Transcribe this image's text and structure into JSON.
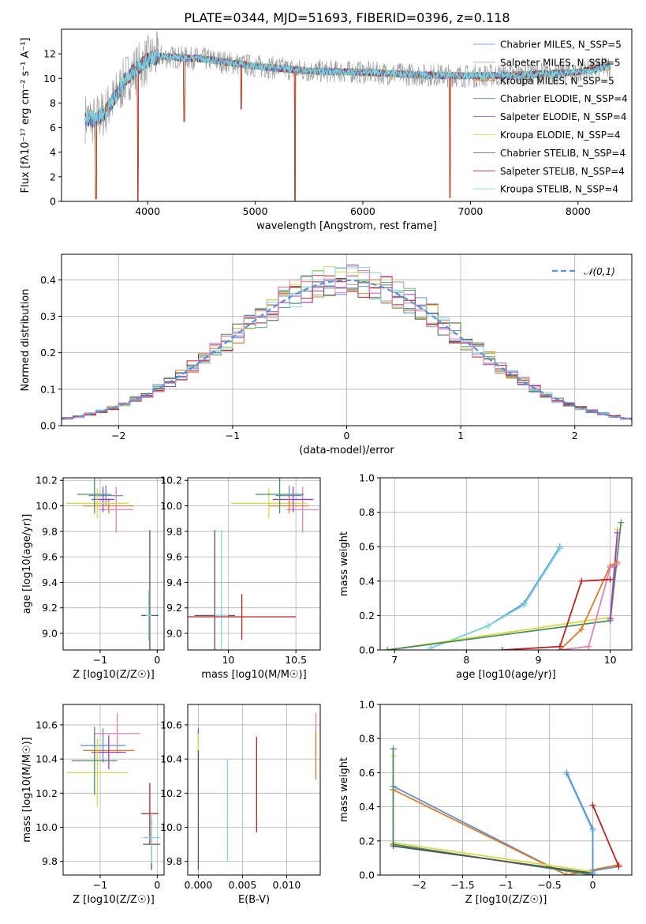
{
  "figure": {
    "title": "PLATE=0344, MJD=51693, FIBERID=0396, z=0.118"
  },
  "colors": {
    "chabrier_miles": "#5b8fd6",
    "salpeter_miles": "#9e9e9e",
    "kroupa_miles": "#e07b25",
    "chabrier_elodie": "#4e8c62",
    "salpeter_elodie": "#a13cc8",
    "kroupa_elodie": "#d5dc4a",
    "chabrier_stelib": "#555555",
    "salpeter_stelib": "#c02020",
    "kroupa_stelib": "#7fd6e0",
    "normal": "#5b8fd6",
    "pink": "#e57fb8",
    "grey_spec": "#7f7f7f"
  },
  "chart_data": [
    {
      "id": "spectrum",
      "type": "line",
      "xlabel": "wavelength [Angstrom, rest frame]",
      "ylabel": "Flux [fλ10⁻¹⁷ erg cm⁻² s⁻¹ A⁻¹]",
      "xlim": [
        3200,
        8500
      ],
      "ylim": [
        0,
        14
      ],
      "xticks": [
        4000,
        5000,
        6000,
        7000,
        8000
      ],
      "yticks": [
        0,
        2,
        4,
        6,
        8,
        10,
        12
      ],
      "legend": "right",
      "series": [
        {
          "name": "Chabrier MILES, N_SSP=5",
          "color_key": "chabrier_miles"
        },
        {
          "name": "Salpeter MILES, N_SSP=5",
          "color_key": "salpeter_miles"
        },
        {
          "name": "Kroupa MILES, N_SSP=5",
          "color_key": "kroupa_miles"
        },
        {
          "name": "Chabrier ELODIE, N_SSP=4",
          "color_key": "chabrier_elodie"
        },
        {
          "name": "Salpeter ELODIE, N_SSP=4",
          "color_key": "salpeter_elodie"
        },
        {
          "name": "Kroupa ELODIE, N_SSP=4",
          "color_key": "kroupa_elodie"
        },
        {
          "name": "Chabrier STELIB, N_SSP=4",
          "color_key": "chabrier_stelib"
        },
        {
          "name": "Salpeter STELIB, N_SSP=4",
          "color_key": "salpeter_stelib"
        },
        {
          "name": "Kroupa STELIB, N_SSP=4",
          "color_key": "kroupa_stelib"
        }
      ],
      "continuum": {
        "x": [
          3420,
          3500,
          3600,
          3700,
          3800,
          3900,
          4000,
          4100,
          4300,
          4500,
          5000,
          5500,
          6000,
          6500,
          7000,
          7500,
          8000,
          8300
        ],
        "y": [
          6.8,
          6.6,
          7.2,
          8.5,
          10.0,
          10.8,
          11.5,
          11.8,
          11.7,
          11.6,
          11.0,
          10.6,
          10.5,
          10.3,
          10.2,
          10.3,
          10.5,
          11.0
        ]
      },
      "features": [
        {
          "x": 3520,
          "y": 0.2
        },
        {
          "x": 3910,
          "y": 0.0
        },
        {
          "x": 5370,
          "y": 0.0
        },
        {
          "x": 6810,
          "y": 0.3
        },
        {
          "x": 4340,
          "y": 6.5
        },
        {
          "x": 4870,
          "y": 7.5
        }
      ]
    },
    {
      "id": "residuals",
      "type": "histogram",
      "xlabel": "(data-model)/error",
      "ylabel": "Normed distribution",
      "xlim": [
        -2.5,
        2.5
      ],
      "ylim": [
        0,
        0.47
      ],
      "xticks": [
        -2,
        -1,
        0,
        1,
        2
      ],
      "yticks": [
        0.0,
        0.1,
        0.2,
        0.3,
        0.4
      ],
      "legend": "top-right",
      "gaussian_label": "𝒩(0,1)",
      "bin_width": 0.1
    },
    {
      "id": "age_vs_Z",
      "type": "errorbar",
      "xlabel": "Z [log10(Z/Z☉)]",
      "ylabel": "age  [log10(age/yr)]",
      "xlim": [
        -1.65,
        0.12
      ],
      "ylim": [
        8.87,
        10.22
      ],
      "xticks": [
        -1,
        0
      ],
      "yticks": [
        9.0,
        9.2,
        9.4,
        9.6,
        9.8,
        10.0,
        10.2
      ],
      "points": [
        {
          "c": "chabrier_miles",
          "x": -0.9,
          "xerr": 0.3,
          "y": 10.08,
          "yerr": 0.08
        },
        {
          "c": "kroupa_miles",
          "x": -0.85,
          "xerr": 0.45,
          "y": 10.0,
          "yerr": 0.06
        },
        {
          "c": "pink",
          "x": -0.72,
          "xerr": 0.3,
          "y": 9.97,
          "yerr": 0.18
        },
        {
          "c": "salpeter_elodie",
          "x": -0.95,
          "xerr": 0.2,
          "y": 10.05,
          "yerr": 0.1
        },
        {
          "c": "kroupa_elodie",
          "x": -1.05,
          "xerr": 0.55,
          "y": 10.02,
          "yerr": 0.12
        },
        {
          "c": "chabrier_elodie",
          "x": -1.1,
          "xerr": 0.3,
          "y": 10.09,
          "yerr": 0.15
        },
        {
          "c": "chabrier_stelib",
          "x": -0.13,
          "xerr": 0.15,
          "y": 9.14,
          "yerr": 0.67
        },
        {
          "c": "kroupa_stelib",
          "x": -0.15,
          "xerr": 0.05,
          "y": 9.14,
          "yerr": 0.2
        }
      ]
    },
    {
      "id": "age_vs_mass",
      "type": "errorbar",
      "xlabel": "mass [log10(M/M☉)]",
      "ylabel": "",
      "xlim": [
        9.7,
        10.68
      ],
      "ylim": [
        8.87,
        10.22
      ],
      "xticks": [
        10.0,
        10.5
      ],
      "yticks": [
        9.0,
        9.2,
        9.4,
        9.6,
        9.8,
        10.0,
        10.2
      ],
      "points": [
        {
          "c": "chabrier_miles",
          "x": 10.45,
          "xerr": 0.1,
          "y": 10.08,
          "yerr": 0.08
        },
        {
          "c": "pink",
          "x": 10.55,
          "xerr": 0.12,
          "y": 9.97,
          "yerr": 0.18
        },
        {
          "c": "kroupa_elodie",
          "x": 10.3,
          "xerr": 0.28,
          "y": 10.02,
          "yerr": 0.12
        },
        {
          "c": "salpeter_elodie",
          "x": 10.48,
          "xerr": 0.15,
          "y": 10.05,
          "yerr": 0.1
        },
        {
          "c": "kroupa_miles",
          "x": 10.45,
          "xerr": 0.15,
          "y": 10.0,
          "yerr": 0.06
        },
        {
          "c": "chabrier_elodie",
          "x": 10.38,
          "xerr": 0.18,
          "y": 10.09,
          "yerr": 0.15
        },
        {
          "c": "chabrier_stelib",
          "x": 9.9,
          "xerr": 0.15,
          "y": 9.14,
          "yerr": 0.67
        },
        {
          "c": "kroupa_stelib",
          "x": 9.95,
          "xerr": 0.05,
          "y": 9.14,
          "yerr": 0.67
        },
        {
          "c": "salpeter_stelib",
          "x": 10.1,
          "xerr": 0.4,
          "y": 9.13,
          "yerr": 0.18
        }
      ]
    },
    {
      "id": "weight_vs_age",
      "type": "line",
      "xlabel": "age  [log10(age/yr)]",
      "ylabel": "mass weight",
      "xlim": [
        6.8,
        10.3
      ],
      "ylim": [
        0,
        1
      ],
      "xticks": [
        7,
        8,
        9,
        10
      ],
      "yticks": [
        0.0,
        0.2,
        0.4,
        0.6,
        0.8,
        1.0
      ],
      "series": [
        {
          "c": "chabrier_miles",
          "x": [
            7.5,
            8.3,
            8.8,
            9.3
          ],
          "y": [
            0.01,
            0.14,
            0.27,
            0.6
          ]
        },
        {
          "c": "kroupa_stelib",
          "x": [
            7.5,
            8.3,
            8.8,
            9.3
          ],
          "y": [
            0.01,
            0.14,
            0.26,
            0.59
          ]
        },
        {
          "c": "kroupa_elodie",
          "x": [
            6.9,
            10.0,
            10.1
          ],
          "y": [
            0.0,
            0.19,
            0.7
          ]
        },
        {
          "c": "chabrier_elodie",
          "x": [
            6.9,
            10.0,
            10.15
          ],
          "y": [
            0.0,
            0.17,
            0.74
          ]
        },
        {
          "c": "salpeter_elodie",
          "x": [
            10.0,
            10.1
          ],
          "y": [
            0.18,
            0.68
          ]
        },
        {
          "c": "kroupa_miles",
          "x": [
            9.3,
            9.6,
            10.0,
            10.1
          ],
          "y": [
            0.0,
            0.12,
            0.49,
            0.51
          ]
        },
        {
          "c": "pink",
          "x": [
            9.3,
            9.7,
            10.0,
            10.1
          ],
          "y": [
            0.0,
            0.02,
            0.48,
            0.5
          ]
        },
        {
          "c": "salpeter_stelib",
          "x": [
            8.5,
            9.3,
            9.6,
            10.0
          ],
          "y": [
            0.0,
            0.02,
            0.4,
            0.41
          ]
        }
      ]
    },
    {
      "id": "mass_vs_Z",
      "type": "errorbar",
      "xlabel": "Z [log10(Z/Z☉)]",
      "ylabel": "mass [log10(M/M☉)]",
      "xlim": [
        -1.65,
        0.12
      ],
      "ylim": [
        9.72,
        10.72
      ],
      "xticks": [
        -1,
        0
      ],
      "yticks": [
        9.8,
        10.0,
        10.2,
        10.4,
        10.6
      ],
      "points": [
        {
          "c": "pink",
          "x": -0.7,
          "xerr": 0.4,
          "y": 10.55,
          "yerr": 0.12
        },
        {
          "c": "chabrier_miles",
          "x": -0.95,
          "xerr": 0.4,
          "y": 10.48,
          "yerr": 0.1
        },
        {
          "c": "kroupa_miles",
          "x": -0.85,
          "xerr": 0.45,
          "y": 10.45,
          "yerr": 0.08
        },
        {
          "c": "salpeter_elodie",
          "x": -0.85,
          "xerr": 0.3,
          "y": 10.44,
          "yerr": 0.1
        },
        {
          "c": "kroupa_elodie",
          "x": -1.05,
          "xerr": 0.55,
          "y": 10.32,
          "yerr": 0.2
        },
        {
          "c": "chabrier_elodie",
          "x": -1.1,
          "xerr": 0.4,
          "y": 10.39,
          "yerr": 0.2
        },
        {
          "c": "salpeter_stelib",
          "x": -0.13,
          "xerr": 0.15,
          "y": 10.08,
          "yerr": 0.18
        },
        {
          "c": "chabrier_stelib",
          "x": -0.1,
          "xerr": 0.15,
          "y": 9.9,
          "yerr": 0.15
        },
        {
          "c": "kroupa_stelib",
          "x": -0.1,
          "xerr": 0.15,
          "y": 9.94,
          "yerr": 0.15
        }
      ]
    },
    {
      "id": "mass_vs_ebv",
      "type": "errorbar",
      "xlabel": "E(B-V)",
      "ylabel": "",
      "xlim": [
        -0.0012,
        0.0138
      ],
      "ylim": [
        9.72,
        10.72
      ],
      "xticks": [
        0.0,
        0.005,
        0.01
      ],
      "xticklabels": [
        "0.000",
        "0.005",
        "0.010"
      ],
      "yticks": [
        9.8,
        10.0,
        10.2,
        10.4,
        10.6
      ],
      "points": [
        {
          "c": "salpeter_elodie",
          "x": 0.0,
          "xerr": 0,
          "y": 10.5,
          "yerr": 0.08
        },
        {
          "c": "kroupa_elodie",
          "x": 0.0,
          "xerr": 0,
          "y": 10.35,
          "yerr": 0.2
        },
        {
          "c": "chabrier_stelib",
          "x": 0.0,
          "xerr": 0,
          "y": 10.1,
          "yerr": 0.35
        },
        {
          "c": "kroupa_stelib",
          "x": 0.0033,
          "xerr": 0,
          "y": 10.1,
          "yerr": 0.3
        },
        {
          "c": "salpeter_stelib",
          "x": 0.0066,
          "xerr": 0,
          "y": 10.25,
          "yerr": 0.28
        },
        {
          "c": "pink",
          "x": 0.0133,
          "xerr": 0,
          "y": 10.55,
          "yerr": 0.12
        },
        {
          "c": "kroupa_miles",
          "x": 0.0133,
          "xerr": 0,
          "y": 10.42,
          "yerr": 0.14
        }
      ]
    },
    {
      "id": "weight_vs_Z",
      "type": "line",
      "xlabel": "Z [log10(Z/Z☉)]",
      "ylabel": "mass weight",
      "xlim": [
        -2.45,
        0.45
      ],
      "ylim": [
        0,
        1
      ],
      "xticks": [
        -2.0,
        -1.5,
        -1.0,
        -0.5,
        0.0
      ],
      "yticks": [
        0.0,
        0.2,
        0.4,
        0.6,
        0.8,
        1.0
      ],
      "series": [
        {
          "c": "chabrier_miles",
          "x": [
            -2.3,
            -0.3,
            0.3
          ],
          "y": [
            0.52,
            0.0,
            0.05
          ]
        },
        {
          "c": "kroupa_miles",
          "x": [
            -2.3,
            -0.3,
            0.3
          ],
          "y": [
            0.5,
            0.0,
            0.06
          ]
        },
        {
          "c": "kroupa_elodie",
          "x": [
            -2.3,
            -2.3,
            0.0
          ],
          "y": [
            0.7,
            0.19,
            0.02
          ]
        },
        {
          "c": "chabrier_elodie",
          "x": [
            -2.3,
            -2.3,
            0.0
          ],
          "y": [
            0.74,
            0.18,
            0.0
          ]
        },
        {
          "c": "chabrier_stelib",
          "x": [
            -2.3,
            0.0
          ],
          "y": [
            0.17,
            0.01
          ]
        },
        {
          "c": "kroupa_stelib",
          "x": [
            -0.3,
            0.0,
            0.0
          ],
          "y": [
            0.59,
            0.26,
            0.02
          ]
        },
        {
          "c": "chabrier_miles",
          "x": [
            -0.3,
            0.0,
            0.0
          ],
          "y": [
            0.6,
            0.27,
            0.01
          ]
        },
        {
          "c": "salpeter_stelib",
          "x": [
            0.0,
            0.3
          ],
          "y": [
            0.41,
            0.05
          ]
        }
      ]
    }
  ]
}
